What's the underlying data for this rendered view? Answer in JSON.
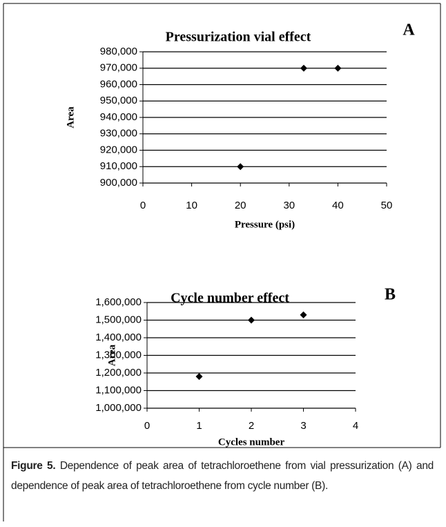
{
  "chart_data": [
    {
      "type": "scatter",
      "title": "Pressurization vial effect",
      "panel_label": "A",
      "x_label": "Pressure (psi)",
      "y_label": "Area",
      "x": [
        20,
        33,
        40
      ],
      "values": [
        910000,
        970000,
        970000
      ],
      "color": "#000000",
      "xlim": [
        0,
        50
      ],
      "xticks": [
        0,
        10,
        20,
        30,
        40,
        50
      ],
      "ylim": [
        900000,
        980000
      ],
      "yticks": [
        {
          "value": 900000,
          "label": "900,000"
        },
        {
          "value": 910000,
          "label": "910,000"
        },
        {
          "value": 920000,
          "label": "920,000"
        },
        {
          "value": 930000,
          "label": "930,000"
        },
        {
          "value": 940000,
          "label": "940,000"
        },
        {
          "value": 950000,
          "label": "950,000"
        },
        {
          "value": 960000,
          "label": "960,000"
        },
        {
          "value": 970000,
          "label": "970,000"
        },
        {
          "value": 980000,
          "label": "980,000"
        }
      ],
      "grid": true
    },
    {
      "type": "scatter",
      "title": "Cycle number effect",
      "panel_label": "B",
      "x_label": "Cycles number",
      "y_label": "Area",
      "x": [
        1,
        2,
        3
      ],
      "values": [
        1180000,
        1500000,
        1530000
      ],
      "color": "#000000",
      "xlim": [
        0,
        4
      ],
      "xticks": [
        0,
        1,
        2,
        3,
        4
      ],
      "ylim": [
        1000000,
        1600000
      ],
      "yticks": [
        {
          "value": 1000000,
          "label": "1,000,000"
        },
        {
          "value": 1100000,
          "label": "1,100,000"
        },
        {
          "value": 1200000,
          "label": "1,200,000"
        },
        {
          "value": 1300000,
          "label": "1,300,000"
        },
        {
          "value": 1400000,
          "label": "1,400,000"
        },
        {
          "value": 1500000,
          "label": "1,500,000"
        },
        {
          "value": 1600000,
          "label": "1,600,000"
        }
      ],
      "grid": true
    }
  ],
  "caption": {
    "label": "Figure 5.",
    "text": "Dependence of peak area of tetrachloroethene from vial pressurization (A) and dependence of peak area of tetrachloroethene from cycle number (B)."
  }
}
